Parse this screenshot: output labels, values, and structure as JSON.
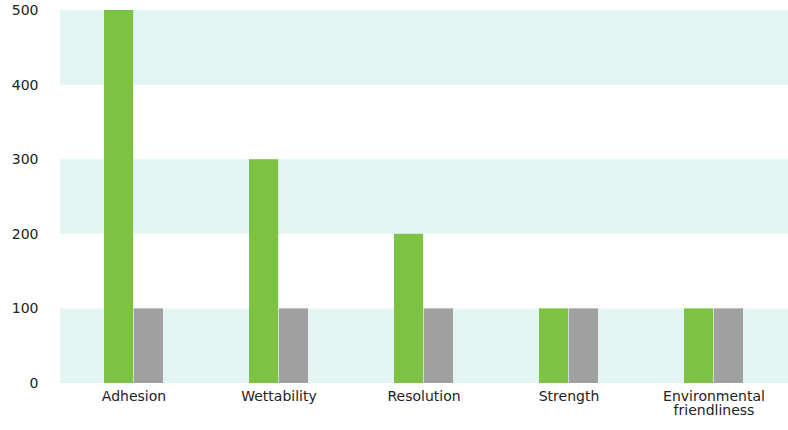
{
  "chart_data": {
    "type": "bar",
    "categories": [
      "Adhesion",
      "Wettability",
      "Resolution",
      "Strength",
      "Environmental friendliness"
    ],
    "series": [
      {
        "color": "#7dc242",
        "values": [
          500,
          300,
          200,
          100,
          100
        ]
      },
      {
        "color": "#a0a0a0",
        "values": [
          100,
          100,
          100,
          100,
          100
        ]
      }
    ],
    "ylim": [
      0,
      500
    ],
    "yticks": [
      0,
      100,
      200,
      300,
      400,
      500
    ],
    "grid": true
  }
}
